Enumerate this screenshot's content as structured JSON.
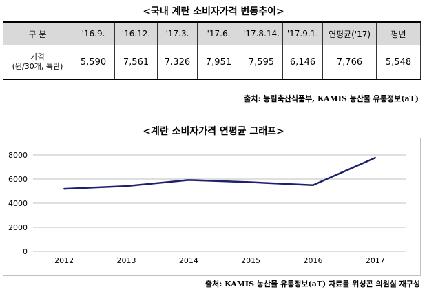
{
  "table": {
    "title": "<국내 계란 소비자가격 변동추이>",
    "headers": [
      "구 분",
      "'16.9.",
      "'16.12.",
      "'17.3.",
      "'17.6.",
      "'17.8.14.",
      "'17.9.1.",
      "연평균('17)",
      "평년"
    ],
    "row": {
      "label_line1": "가격",
      "label_line2": "(원/30개, 특란)",
      "values": [
        "5,590",
        "7,561",
        "7,326",
        "7,951",
        "7,595",
        "6,146",
        "7,766",
        "5,548"
      ]
    },
    "source": "출처: 농림축산식품부, KAMIS 농산물 유통정보(aT)"
  },
  "chart_data": {
    "type": "line",
    "title": "<계란 소비자가격 연평균 그래프>",
    "x": [
      "2012",
      "2013",
      "2014",
      "2015",
      "2016",
      "2017"
    ],
    "series": [
      {
        "values": [
          5190,
          5420,
          5920,
          5740,
          5500,
          7766
        ],
        "color": "#1f1f6b"
      }
    ],
    "ylim": [
      0,
      8000
    ],
    "yticks": [
      "0",
      "2000",
      "4000",
      "6000",
      "8000"
    ],
    "grid": true,
    "source": "출처: KAMIS 농산물 유통정보(aT) 자료를 위성곤 의원실 재구성"
  }
}
